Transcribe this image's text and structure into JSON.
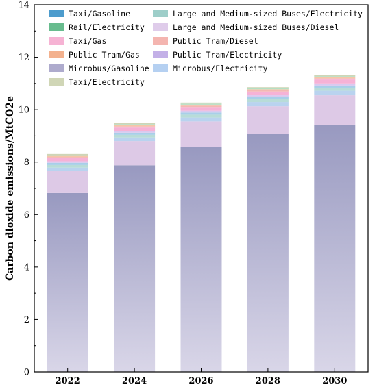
{
  "chart_data": {
    "type": "bar",
    "stacked": true,
    "categories": [
      "2022",
      "2024",
      "2026",
      "2028",
      "2030"
    ],
    "ylabel": "Carbon dioxide emissions/MtCO2e",
    "ylim": [
      0,
      14
    ],
    "yticks": [
      0,
      2,
      4,
      6,
      8,
      10,
      12,
      14
    ],
    "grid": false,
    "legend_position": "top",
    "series": [
      {
        "name": "Microbus/Gasoline",
        "color": "#9a9bc2",
        "values": [
          6.82,
          7.88,
          8.57,
          9.07,
          9.43
        ]
      },
      {
        "name": "Large and Medium-sized Buses/Diesel",
        "color": "#ddc9e6",
        "values": [
          0.85,
          0.92,
          0.98,
          1.06,
          1.12
        ]
      },
      {
        "name": "Microbus/Electricity",
        "color": "#b9d3ef",
        "values": [
          0.12,
          0.14,
          0.15,
          0.16,
          0.17
        ]
      },
      {
        "name": "Large and Medium-sized Buses/Electricity",
        "color": "#b8dcd8",
        "values": [
          0.1,
          0.1,
          0.11,
          0.11,
          0.12
        ]
      },
      {
        "name": "Taxi/Gasoline",
        "color": "#a8cfe8",
        "values": [
          0.08,
          0.08,
          0.08,
          0.08,
          0.08
        ]
      },
      {
        "name": "Public Tram/Electricity",
        "color": "#d8c9ef",
        "values": [
          0.06,
          0.07,
          0.07,
          0.07,
          0.08
        ]
      },
      {
        "name": "Taxi/Gas",
        "color": "#f6b2d6",
        "values": [
          0.12,
          0.13,
          0.14,
          0.14,
          0.15
        ]
      },
      {
        "name": "Public Tram/Diesel",
        "color": "#f3b8b3",
        "values": [
          0.05,
          0.05,
          0.05,
          0.05,
          0.05
        ]
      },
      {
        "name": "Public Tram/Gas",
        "color": "#f5c6a8",
        "values": [
          0.04,
          0.04,
          0.04,
          0.04,
          0.04
        ]
      },
      {
        "name": "Rail/Electricity",
        "color": "#b5dfc3",
        "values": [
          0.03,
          0.04,
          0.04,
          0.04,
          0.04
        ]
      },
      {
        "name": "Taxi/Electricity",
        "color": "#cfd5b6",
        "values": [
          0.04,
          0.04,
          0.04,
          0.04,
          0.04
        ]
      }
    ],
    "legend": [
      {
        "name": "Taxi/Gasoline",
        "color": "#2e8bc4"
      },
      {
        "name": "Large and Medium-sized Buses/Electricity",
        "color": "#8dc6c0"
      },
      {
        "name": "Rail/Electricity",
        "color": "#4db07a"
      },
      {
        "name": "Large and Medium-sized Buses/Diesel",
        "color": "#d9c3e6"
      },
      {
        "name": "Taxi/Gas",
        "color": "#f4a6cc"
      },
      {
        "name": "Public Tram/Diesel",
        "color": "#f2a8a2"
      },
      {
        "name": "Public Tram/Gas",
        "color": "#f1a37a"
      },
      {
        "name": "Public Tram/Electricity",
        "color": "#b9a2e3"
      },
      {
        "name": "Microbus/Gasoline",
        "color": "#a09cc4"
      },
      {
        "name": "Microbus/Electricity",
        "color": "#a8c8ee"
      },
      {
        "name": "Taxi/Electricity",
        "color": "#c8cfa9"
      }
    ]
  }
}
